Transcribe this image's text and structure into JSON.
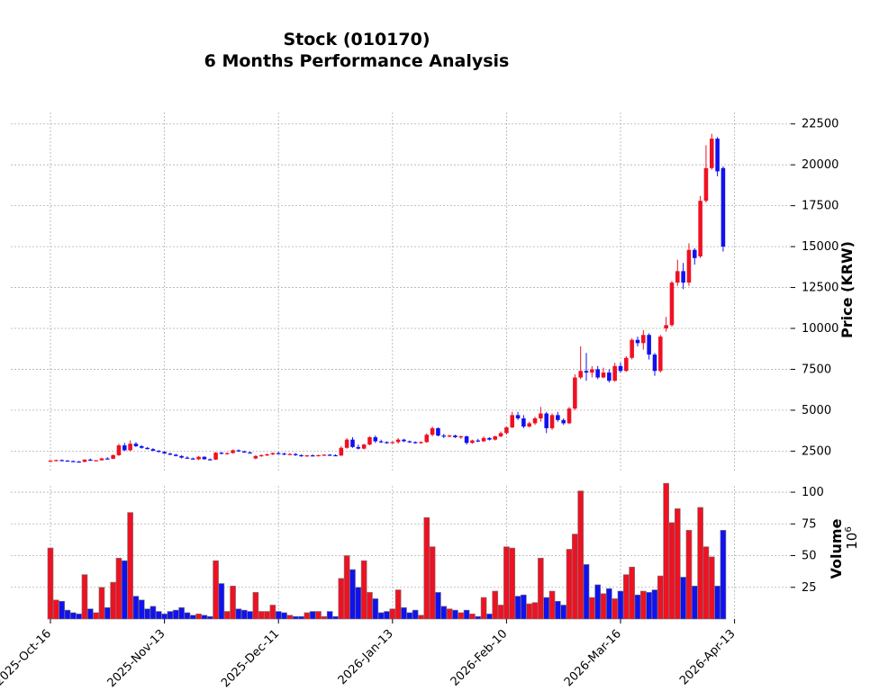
{
  "chart_data": {
    "type": "candlestick",
    "title_line1": "Stock (010170)",
    "title_line2": "6 Months Performance Analysis",
    "price_axis": {
      "label": "Price (KRW)",
      "ylim": [
        1200,
        23200
      ],
      "ticks": [
        2500,
        5000,
        7500,
        10000,
        12500,
        15000,
        17500,
        20000,
        22500
      ]
    },
    "volume_axis": {
      "label": "Volume",
      "exponent": "10",
      "exponent_power": "6",
      "ylim": [
        0,
        105
      ],
      "ticks": [
        25,
        50,
        75,
        100
      ]
    },
    "x_ticks": [
      {
        "label": "2025-Oct-16",
        "index": 0
      },
      {
        "label": "2025-Nov-13",
        "index": 20
      },
      {
        "label": "2025-Dec-11",
        "index": 40
      },
      {
        "label": "2026-Jan-13",
        "index": 60
      },
      {
        "label": "2026-Feb-10",
        "index": 80
      },
      {
        "label": "2026-Mar-16",
        "index": 100
      },
      {
        "label": "2026-Apr-13",
        "index": 120
      }
    ],
    "grid": true,
    "colors": {
      "up": "#ee1122",
      "down": "#1111ee",
      "edge": "#777777"
    },
    "candles": [
      [
        1900,
        1950,
        1850,
        1920,
        56
      ],
      [
        1920,
        1980,
        1880,
        1950,
        15
      ],
      [
        1950,
        1990,
        1900,
        1920,
        14
      ],
      [
        1920,
        1950,
        1870,
        1890,
        7
      ],
      [
        1890,
        1920,
        1840,
        1860,
        5
      ],
      [
        1860,
        1900,
        1820,
        1840,
        4
      ],
      [
        1840,
        2000,
        1820,
        1980,
        35
      ],
      [
        1980,
        2050,
        1900,
        1920,
        8
      ],
      [
        1920,
        1960,
        1880,
        1940,
        5
      ],
      [
        1940,
        2100,
        1920,
        2050,
        25
      ],
      [
        2050,
        2120,
        2000,
        2030,
        9
      ],
      [
        2030,
        2300,
        2010,
        2250,
        29
      ],
      [
        2250,
        2950,
        2200,
        2850,
        48
      ],
      [
        2850,
        3000,
        2500,
        2550,
        46
      ],
      [
        2550,
        3150,
        2500,
        2950,
        84
      ],
      [
        2950,
        3050,
        2750,
        2800,
        18
      ],
      [
        2800,
        2860,
        2650,
        2700,
        15
      ],
      [
        2700,
        2750,
        2600,
        2620,
        8
      ],
      [
        2620,
        2680,
        2500,
        2520,
        10
      ],
      [
        2520,
        2560,
        2420,
        2450,
        6
      ],
      [
        2450,
        2500,
        2330,
        2350,
        4
      ],
      [
        2350,
        2400,
        2250,
        2280,
        6
      ],
      [
        2280,
        2330,
        2180,
        2200,
        7
      ],
      [
        2200,
        2250,
        2050,
        2100,
        9
      ],
      [
        2100,
        2180,
        2020,
        2050,
        5
      ],
      [
        2050,
        2100,
        1980,
        2000,
        3
      ],
      [
        2000,
        2200,
        1950,
        2150,
        4
      ],
      [
        2150,
        2180,
        1980,
        2000,
        3
      ],
      [
        2000,
        2050,
        1950,
        1980,
        2
      ],
      [
        1980,
        2450,
        1960,
        2400,
        46
      ],
      [
        2400,
        2450,
        2300,
        2350,
        28
      ],
      [
        2350,
        2420,
        2280,
        2380,
        6
      ],
      [
        2380,
        2600,
        2350,
        2550,
        26
      ],
      [
        2550,
        2600,
        2450,
        2480,
        8
      ],
      [
        2480,
        2530,
        2400,
        2420,
        7
      ],
      [
        2420,
        2470,
        2350,
        2400,
        6
      ],
      [
        2050,
        2250,
        2000,
        2200,
        21
      ],
      [
        2200,
        2300,
        2150,
        2250,
        6
      ],
      [
        2250,
        2350,
        2200,
        2300,
        6
      ],
      [
        2300,
        2420,
        2250,
        2380,
        11
      ],
      [
        2380,
        2450,
        2300,
        2350,
        6
      ],
      [
        2350,
        2400,
        2250,
        2300,
        5
      ],
      [
        2300,
        2380,
        2250,
        2320,
        3
      ],
      [
        2320,
        2380,
        2200,
        2250,
        2
      ],
      [
        2250,
        2300,
        2150,
        2200,
        2
      ],
      [
        2200,
        2260,
        2150,
        2240,
        5
      ],
      [
        2240,
        2300,
        2180,
        2220,
        6
      ],
      [
        2220,
        2280,
        2180,
        2250,
        6
      ],
      [
        2250,
        2300,
        2200,
        2280,
        2
      ],
      [
        2280,
        2320,
        2200,
        2250,
        6
      ],
      [
        2250,
        2300,
        2200,
        2230,
        2
      ],
      [
        2230,
        2800,
        2200,
        2700,
        32
      ],
      [
        2700,
        3300,
        2650,
        3200,
        50
      ],
      [
        3200,
        3350,
        2700,
        2750,
        39
      ],
      [
        2750,
        2900,
        2600,
        2650,
        25
      ],
      [
        2650,
        2950,
        2600,
        2900,
        46
      ],
      [
        2900,
        3400,
        2850,
        3350,
        21
      ],
      [
        3350,
        3450,
        3000,
        3100,
        16
      ],
      [
        3100,
        3200,
        3000,
        3050,
        5
      ],
      [
        3050,
        3100,
        2950,
        3000,
        6
      ],
      [
        3000,
        3100,
        2950,
        3050,
        8
      ],
      [
        3050,
        3300,
        2950,
        3200,
        23
      ],
      [
        3200,
        3250,
        3050,
        3100,
        9
      ],
      [
        3100,
        3150,
        3000,
        3050,
        5
      ],
      [
        3050,
        3100,
        2950,
        3000,
        7
      ],
      [
        3000,
        3100,
        2950,
        3050,
        3
      ],
      [
        3050,
        3600,
        3000,
        3500,
        80
      ],
      [
        3500,
        4000,
        3400,
        3900,
        57
      ],
      [
        3900,
        3950,
        3400,
        3450,
        21
      ],
      [
        3450,
        3550,
        3300,
        3400,
        10
      ],
      [
        3400,
        3500,
        3350,
        3450,
        8
      ],
      [
        3450,
        3500,
        3300,
        3350,
        7
      ],
      [
        3350,
        3450,
        3250,
        3400,
        5
      ],
      [
        3400,
        3450,
        2900,
        3000,
        7
      ],
      [
        3000,
        3200,
        2950,
        3150,
        4
      ],
      [
        3150,
        3250,
        3050,
        3100,
        2
      ],
      [
        3100,
        3400,
        3050,
        3300,
        17
      ],
      [
        3300,
        3350,
        3150,
        3200,
        4
      ],
      [
        3200,
        3450,
        3150,
        3400,
        22
      ],
      [
        3400,
        3700,
        3350,
        3600,
        11
      ],
      [
        3600,
        4000,
        3500,
        3950,
        57
      ],
      [
        3950,
        4900,
        3900,
        4700,
        56
      ],
      [
        4700,
        4900,
        4400,
        4500,
        18
      ],
      [
        4500,
        4700,
        3900,
        4000,
        19
      ],
      [
        4000,
        4300,
        3950,
        4200,
        12
      ],
      [
        4200,
        4600,
        4100,
        4500,
        13
      ],
      [
        4500,
        5200,
        4300,
        4800,
        48
      ],
      [
        4800,
        4900,
        3600,
        3900,
        17
      ],
      [
        3900,
        4800,
        3800,
        4700,
        22
      ],
      [
        4700,
        4900,
        4300,
        4400,
        14
      ],
      [
        4400,
        4500,
        4100,
        4200,
        11
      ],
      [
        4200,
        5200,
        4150,
        5100,
        55
      ],
      [
        5100,
        7200,
        5000,
        7000,
        67
      ],
      [
        7000,
        8900,
        6900,
        7400,
        101
      ],
      [
        7400,
        8500,
        6800,
        7300,
        43
      ],
      [
        7300,
        7700,
        7000,
        7500,
        17
      ],
      [
        7500,
        7700,
        6900,
        7000,
        27
      ],
      [
        7000,
        7600,
        6950,
        7300,
        20
      ],
      [
        7300,
        7500,
        6700,
        6800,
        24
      ],
      [
        6800,
        7900,
        6750,
        7700,
        16
      ],
      [
        7700,
        7900,
        7300,
        7400,
        22
      ],
      [
        7400,
        8300,
        7350,
        8200,
        35
      ],
      [
        8200,
        9400,
        8100,
        9300,
        41
      ],
      [
        9300,
        9500,
        8900,
        9100,
        19
      ],
      [
        9100,
        9900,
        8700,
        9600,
        22
      ],
      [
        9600,
        9700,
        8100,
        8400,
        21
      ],
      [
        8400,
        8500,
        7100,
        7400,
        23
      ],
      [
        7400,
        9600,
        7300,
        9500,
        34
      ],
      [
        10000,
        10700,
        9800,
        10200,
        107
      ],
      [
        10200,
        12900,
        10100,
        12800,
        76
      ],
      [
        12800,
        14200,
        12600,
        13500,
        87
      ],
      [
        13500,
        14000,
        12400,
        12800,
        33
      ],
      [
        12800,
        15200,
        12600,
        14800,
        70
      ],
      [
        14800,
        14900,
        13900,
        14300,
        26
      ],
      [
        14400,
        18100,
        14300,
        17800,
        88
      ],
      [
        17800,
        21200,
        17700,
        19800,
        57
      ],
      [
        19800,
        21900,
        19700,
        21600,
        49
      ],
      [
        21600,
        21700,
        19300,
        19600,
        26
      ],
      [
        19800,
        19900,
        14700,
        15000,
        70
      ]
    ]
  }
}
